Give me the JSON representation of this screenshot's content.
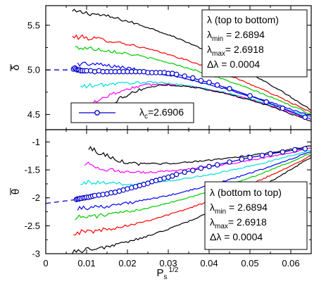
{
  "chart_data": {
    "type": "line",
    "x_axis": {
      "ticks": [
        "0",
        "0.01",
        "0.02",
        "0.03",
        "0.04",
        "0.05",
        "0.06"
      ],
      "tick_values": [
        0,
        0.01,
        0.02,
        0.03,
        0.04,
        0.05,
        0.06
      ],
      "range": [
        0,
        0.065
      ],
      "label_main": "P",
      "label_sub": "s",
      "label_sup": "1/2"
    },
    "colors": {
      "lines": [
        "#000000",
        "#ff0000",
        "#00cc00",
        "#0000ff",
        "#00dddd",
        "#ff00ff",
        "#000000"
      ],
      "critical": "#0000cc",
      "dashed": "#0000cc"
    },
    "panels": [
      {
        "id": "top",
        "ylabel": "δ",
        "ylabel_bar": true,
        "ylim": [
          4.33,
          5.72
        ],
        "y_ticks": [
          "5.5",
          "5.0",
          "4.5"
        ],
        "y_tick_values": [
          5.5,
          5.0,
          4.5
        ],
        "info_lines": [
          {
            "main": "λ (top to bottom)"
          },
          {
            "main": "λ",
            "sub": "min",
            "rest": " = 2.6894"
          },
          {
            "main": "λ",
            "sub": "max",
            "rest": "= 2.6918"
          },
          {
            "main": "Δλ",
            "rest": "   = 0.0004"
          }
        ],
        "legend": {
          "main": "λ",
          "sub": "c",
          "rest": "=2.6906"
        },
        "series_start_x": [
          0.0065,
          0.0065,
          0.0072,
          0.0078,
          0.0085,
          0.0097,
          0.0107
        ],
        "series_start_y": [
          5.65,
          5.37,
          5.25,
          5.07,
          4.81,
          4.6,
          4.48
        ],
        "series_peak_x": [
          0.0065,
          0.0065,
          0.0072,
          0.0078,
          0.026,
          0.028,
          0.03
        ],
        "series_peak_y": [
          5.65,
          5.37,
          5.25,
          5.07,
          4.86,
          4.84,
          4.83
        ],
        "series_end_y": [
          4.55,
          4.52,
          4.5,
          4.48,
          4.46,
          4.44,
          4.42
        ],
        "dashed_x": [
          0,
          0.007
        ],
        "dashed_y": [
          5.0,
          5.0
        ],
        "critical_x": [
          0.0068,
          0.0071,
          0.0074,
          0.0077,
          0.008,
          0.0083,
          0.0086,
          0.009,
          0.0095,
          0.01,
          0.011,
          0.012,
          0.013,
          0.014,
          0.015,
          0.016,
          0.017,
          0.018,
          0.019,
          0.02,
          0.021,
          0.022,
          0.023,
          0.024,
          0.025,
          0.026,
          0.027,
          0.028,
          0.029,
          0.03,
          0.031,
          0.032,
          0.034,
          0.036,
          0.038,
          0.04,
          0.042,
          0.045,
          0.05,
          0.054,
          0.058,
          0.0635
        ],
        "critical_y": [
          5.01,
          5.02,
          5.01,
          5.0,
          5.0,
          5.0,
          4.99,
          4.99,
          4.99,
          4.99,
          4.99,
          4.98,
          4.99,
          4.98,
          4.98,
          4.98,
          4.98,
          4.98,
          4.98,
          4.98,
          4.98,
          4.98,
          4.98,
          4.98,
          4.97,
          4.97,
          4.97,
          4.97,
          4.97,
          4.96,
          4.96,
          4.95,
          4.93,
          4.91,
          4.88,
          4.86,
          4.83,
          4.79,
          4.71,
          4.64,
          4.57,
          4.47
        ]
      },
      {
        "id": "bottom",
        "ylabel": "θ",
        "ylabel_bar": true,
        "ylim": [
          -3.0,
          -0.78
        ],
        "y_ticks": [
          "-1",
          "-1.5",
          "-2",
          "-2.5",
          "-3"
        ],
        "y_tick_values": [
          -1,
          -1.5,
          -2,
          -2.5,
          -3
        ],
        "info_lines": [
          {
            "main": "λ (bottom to top)"
          },
          {
            "main": "λ",
            "sub": "min",
            "rest": " = 2.6894"
          },
          {
            "main": "λ",
            "sub": "max",
            "rest": "= 2.6918"
          },
          {
            "main": "Δλ",
            "rest": "   = 0.0004"
          }
        ],
        "series_start_x": [
          0.0065,
          0.0068,
          0.0072,
          0.0078,
          0.0085,
          0.0095,
          0.0105
        ],
        "series_start_y": [
          -2.95,
          -2.62,
          -2.35,
          -2.18,
          -1.72,
          -1.38,
          -1.1
        ],
        "series_trough_x": [
          0.0065,
          0.0068,
          0.0072,
          0.0078,
          0.02,
          0.022,
          0.024
        ],
        "series_trough_y": [
          -2.95,
          -2.62,
          -2.35,
          -2.18,
          -1.75,
          -1.55,
          -1.4
        ],
        "series_end_y": [
          -1.27,
          -1.24,
          -1.2,
          -1.17,
          -1.14,
          -1.11,
          -1.07
        ],
        "dashed_x": [
          0,
          0.0075
        ],
        "dashed_y": [
          -2.1,
          -2.03
        ],
        "critical_x": [
          0.0075,
          0.0078,
          0.0081,
          0.0084,
          0.0088,
          0.0092,
          0.0096,
          0.01,
          0.0105,
          0.011,
          0.0115,
          0.012,
          0.013,
          0.014,
          0.015,
          0.016,
          0.017,
          0.018,
          0.019,
          0.02,
          0.021,
          0.022,
          0.023,
          0.024,
          0.025,
          0.026,
          0.027,
          0.028,
          0.029,
          0.03,
          0.031,
          0.032,
          0.034,
          0.036,
          0.038,
          0.04,
          0.042,
          0.045,
          0.048,
          0.05,
          0.053,
          0.055,
          0.058,
          0.061,
          0.0635
        ],
        "critical_y": [
          -2.03,
          -2.02,
          -2.02,
          -2.01,
          -2.01,
          -2.0,
          -2.0,
          -1.99,
          -1.99,
          -1.98,
          -1.97,
          -1.96,
          -1.95,
          -1.94,
          -1.93,
          -1.91,
          -1.9,
          -1.88,
          -1.86,
          -1.84,
          -1.82,
          -1.8,
          -1.78,
          -1.76,
          -1.74,
          -1.71,
          -1.69,
          -1.67,
          -1.65,
          -1.63,
          -1.61,
          -1.58,
          -1.54,
          -1.51,
          -1.47,
          -1.44,
          -1.41,
          -1.36,
          -1.31,
          -1.28,
          -1.24,
          -1.21,
          -1.18,
          -1.14,
          -1.12
        ]
      }
    ]
  }
}
